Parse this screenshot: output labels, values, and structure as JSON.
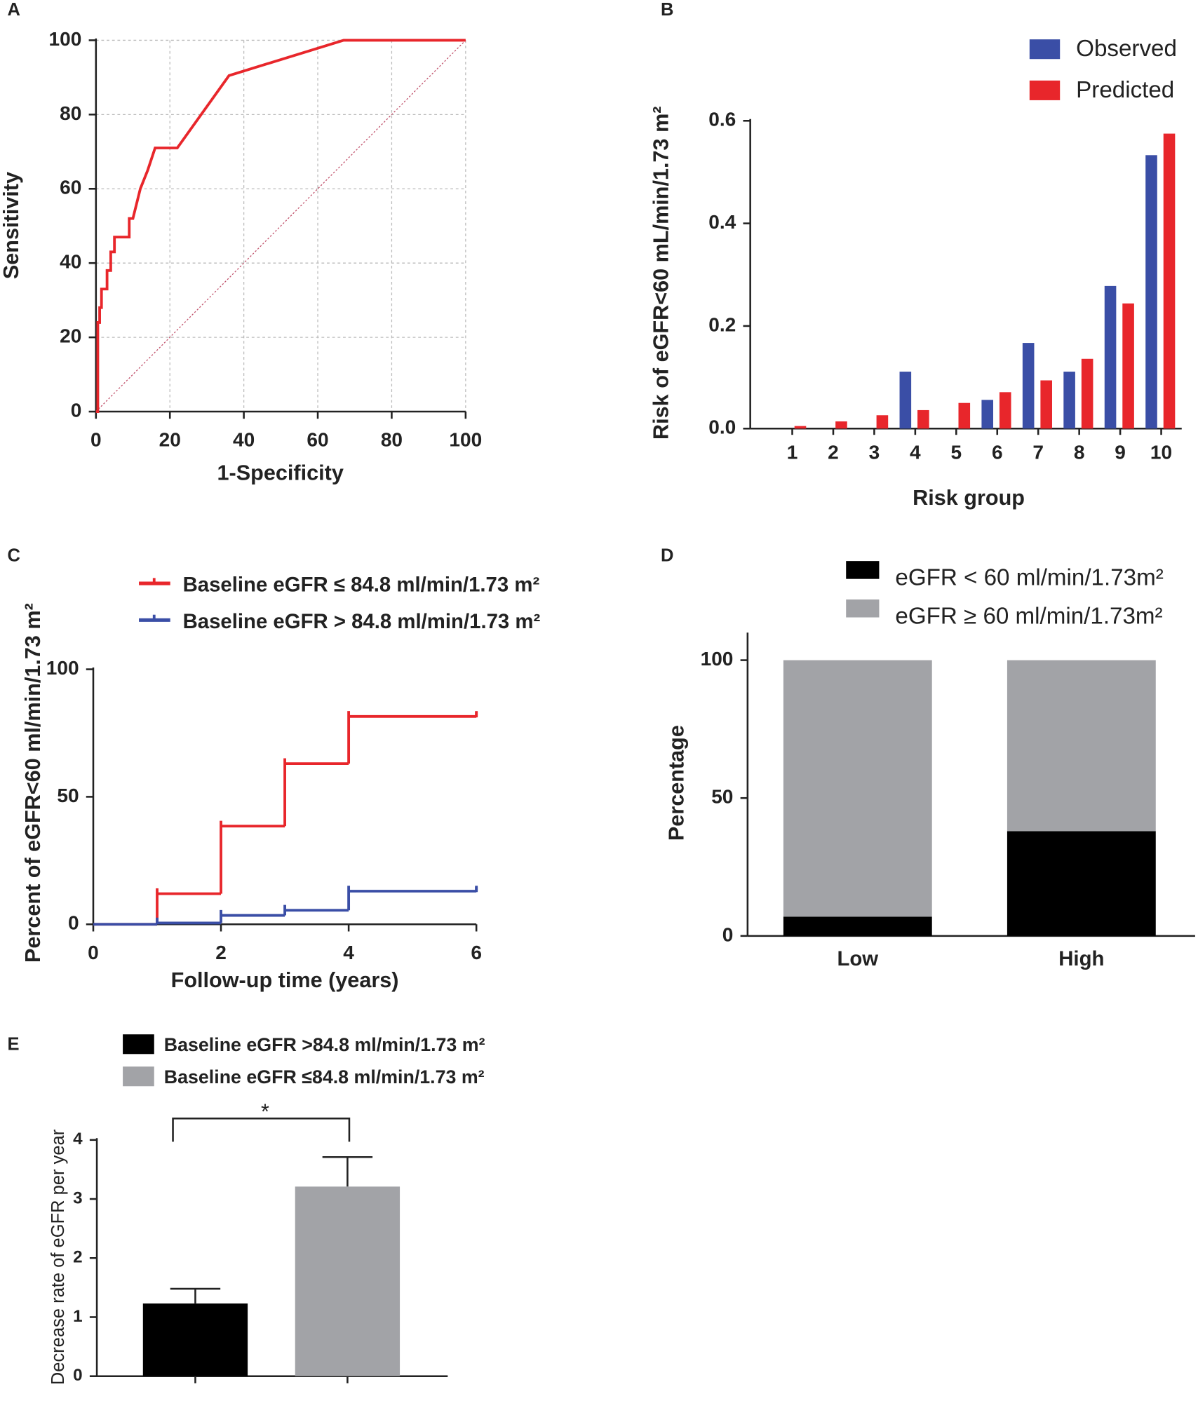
{
  "chart_data": [
    {
      "type": "line",
      "label": "A",
      "xlabel": "1-Specificity",
      "ylabel": "Sensitivity",
      "x": [
        0,
        0.5,
        0.5,
        1,
        1,
        1.5,
        1.5,
        3,
        3,
        4,
        4,
        5,
        5,
        9,
        9,
        10,
        12,
        14,
        16,
        22,
        36,
        67,
        100
      ],
      "series": [
        {
          "color": "#e8262b",
          "values": [
            0,
            0,
            24,
            24,
            28,
            28,
            33,
            33,
            38,
            38,
            43,
            43,
            47,
            47,
            52,
            52,
            60,
            65,
            71,
            71,
            90.5,
            100,
            100
          ]
        }
      ],
      "xlim": [
        0,
        100
      ],
      "ylim": [
        0,
        100
      ],
      "xticks": [
        0,
        20,
        40,
        60,
        80,
        100
      ],
      "yticks": [
        0,
        20,
        40,
        60,
        80,
        100
      ],
      "grid": true
    },
    {
      "type": "bar",
      "label": "B",
      "xlabel": "Risk group",
      "ylabel": "Risk of eGFR<60 mL/min/1.73 m²",
      "categories": [
        "1",
        "2",
        "3",
        "4",
        "5",
        "6",
        "7",
        "8",
        "9",
        "10"
      ],
      "series": [
        {
          "name": "Observed",
          "color": "#3a4ea6",
          "values": [
            0,
            0,
            0,
            0.111,
            0,
            0.056,
            0.167,
            0.111,
            0.278,
            0.533
          ]
        },
        {
          "name": "Predicted",
          "color": "#e8262b",
          "values": [
            0.005,
            0.014,
            0.026,
            0.036,
            0.05,
            0.071,
            0.094,
            0.136,
            0.244,
            0.575
          ]
        }
      ],
      "ylim": [
        0,
        0.6
      ],
      "yticks": [
        {
          "value": 0,
          "label": "0.0"
        },
        0.2,
        0.4,
        0.6
      ],
      "legend": "top-right"
    },
    {
      "type": "step",
      "label": "C",
      "xlabel": "Follow-up time (years)",
      "ylabel": "Percent of eGFR<60 ml/min/1.73 m²",
      "series": [
        {
          "name": "Baseline eGFR ≤ 84.8 ml/min/1.73 m²",
          "color": "#e8262b",
          "x": [
            0,
            1,
            2,
            3,
            4,
            6
          ],
          "values": [
            0,
            12,
            38.5,
            63,
            81.5,
            81.5
          ]
        },
        {
          "name": "Baseline eGFR > 84.8 ml/min/1.73 m²",
          "color": "#3a4ea6",
          "x": [
            0,
            1,
            2,
            3,
            4,
            6
          ],
          "values": [
            0,
            0.5,
            3.5,
            5.5,
            13,
            13
          ]
        }
      ],
      "xlim": [
        0,
        6
      ],
      "ylim": [
        0,
        100
      ],
      "xticks": [
        0,
        2,
        4,
        6
      ],
      "yticks": [
        0,
        50,
        100
      ],
      "legend": "top"
    },
    {
      "type": "stacked-bar",
      "label": "D",
      "ylabel": "Percentage",
      "categories": [
        "Low",
        "High"
      ],
      "series": [
        {
          "name": "eGFR < 60 ml/min/1.73m²",
          "color": "#000000",
          "values": [
            7,
            38
          ]
        },
        {
          "name": "eGFR ≥ 60 ml/min/1.73m²",
          "color": "#a2a3a7",
          "values": [
            93,
            62
          ]
        }
      ],
      "ylim": [
        0,
        110
      ],
      "yticks": [
        0,
        50,
        100
      ],
      "legend": "top"
    },
    {
      "type": "error-bar",
      "label": "E",
      "ylabel": "Decrease rate of eGFR per year",
      "annotation": "*",
      "series": [
        {
          "name": "Baseline eGFR >84.8 ml/min/1.73 m²",
          "color": "#000000",
          "values": [
            1.23
          ],
          "errors": [
            0.25
          ]
        },
        {
          "name": "Baseline eGFR ≤84.8 ml/min/1.73 m²",
          "color": "#a2a3a7",
          "values": [
            3.21
          ],
          "errors": [
            0.5
          ]
        }
      ],
      "ylim": [
        0,
        4
      ],
      "yticks": [
        0,
        1,
        2,
        3,
        4
      ],
      "legend": "top"
    }
  ]
}
